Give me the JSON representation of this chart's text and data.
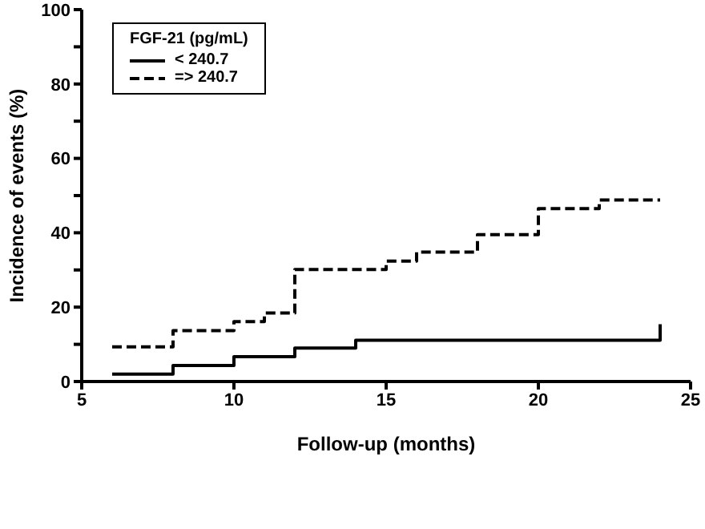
{
  "chart_data": {
    "type": "step",
    "xlabel": "Follow-up (months)",
    "ylabel": "Incidence of events (%)",
    "legend_title": "FGF-21 (pg/mL)",
    "legend": "top left",
    "xlim": [
      5,
      25
    ],
    "xticks": [
      5,
      10,
      15,
      20,
      25
    ],
    "ylim": [
      0,
      100
    ],
    "yticks": [
      0,
      {
        "value": 10,
        "label": null
      },
      20,
      {
        "value": 30,
        "label": null
      },
      40,
      {
        "value": 50,
        "label": null
      },
      60,
      {
        "value": 70,
        "label": null
      },
      80,
      {
        "value": 90,
        "label": null
      },
      100
    ],
    "series": [
      {
        "name": "< 240.7",
        "color": "#000000",
        "line_style": "solid",
        "x": [
          6,
          8,
          10,
          12,
          14,
          24,
          24
        ],
        "values": [
          2.0,
          4.3,
          6.7,
          9.0,
          11.1,
          11.1,
          15.4
        ]
      },
      {
        "name": "=> 240.7",
        "color": "#000000",
        "line_style": "dashed",
        "x": [
          6,
          8,
          10,
          11,
          12,
          15,
          16,
          18,
          20,
          22,
          24
        ],
        "values": [
          9.3,
          13.7,
          16.1,
          18.4,
          30.1,
          32.4,
          34.8,
          39.5,
          46.5,
          48.8,
          48.8
        ]
      }
    ]
  }
}
